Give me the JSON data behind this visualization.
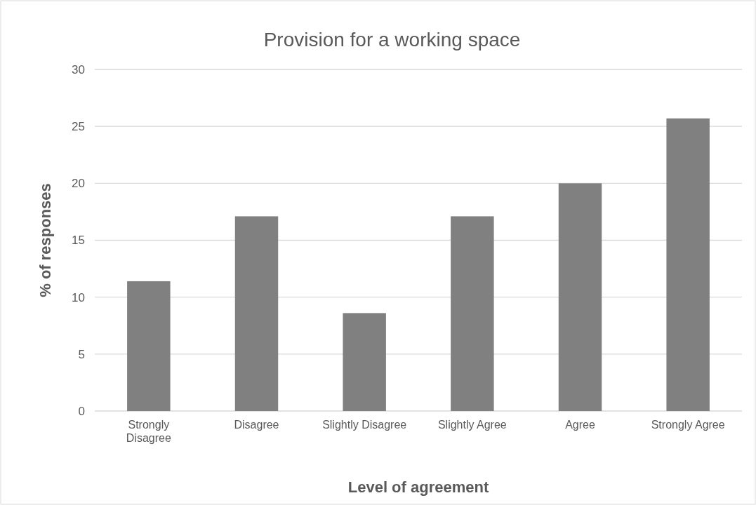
{
  "chart_data": {
    "type": "bar",
    "title": "Provision for a working space",
    "xlabel": "Level of agreement",
    "ylabel": "% of responses",
    "categories": [
      "Strongly Disagree",
      "Disagree",
      "Slightly Disagree",
      "Slightly Agree",
      "Agree",
      "Strongly Agree"
    ],
    "values": [
      11.4,
      17.1,
      8.6,
      17.1,
      20,
      25.7
    ],
    "color": "#808080",
    "ylim": [
      0,
      30
    ],
    "yticks": [
      0,
      5,
      10,
      15,
      20,
      25,
      30
    ],
    "grid": "y"
  }
}
